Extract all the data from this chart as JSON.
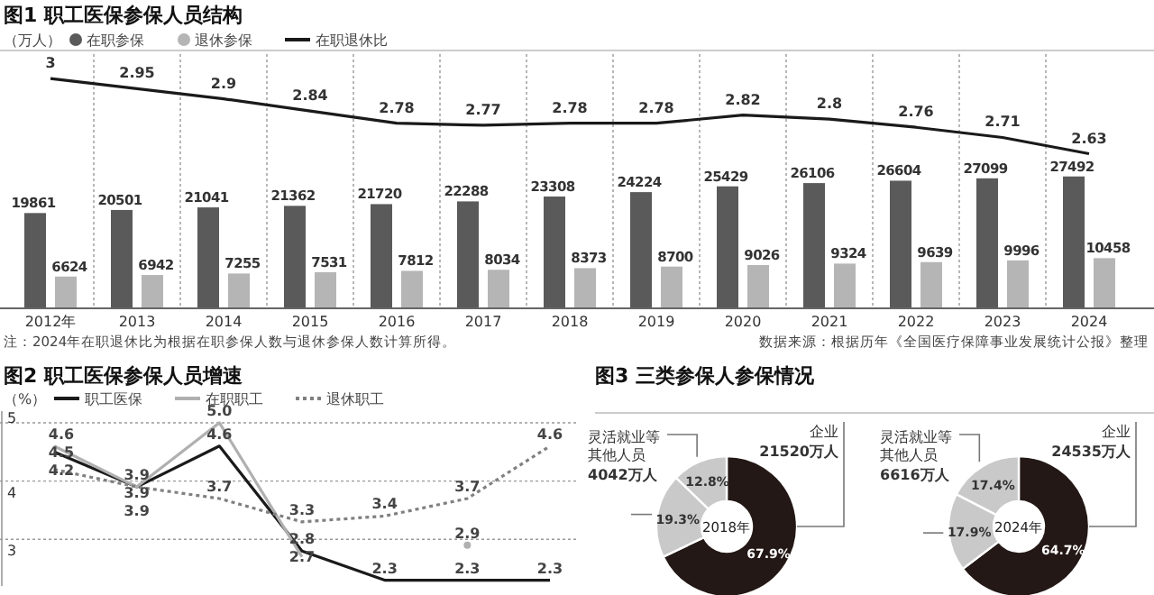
{
  "chart_data": [
    {
      "type": "bar",
      "title": "图1 职工医保参保人员结构",
      "ylabel": "（万人）",
      "categories": [
        "2012年",
        "2013",
        "2014",
        "2015",
        "2016",
        "2017",
        "2018",
        "2019",
        "2020",
        "2021",
        "2022",
        "2023",
        "2024"
      ],
      "series": [
        {
          "name": "在职参保",
          "color": "#5a5a5a",
          "values": [
            19861,
            20501,
            21041,
            21362,
            21720,
            22288,
            23308,
            24224,
            25429,
            26106,
            26604,
            27099,
            27492
          ]
        },
        {
          "name": "退休参保",
          "color": "#b5b5b5",
          "values": [
            6624,
            6942,
            7255,
            7531,
            7812,
            8034,
            8373,
            8700,
            9026,
            9324,
            9639,
            9996,
            10458
          ]
        },
        {
          "name": "在职退休比",
          "type": "line",
          "axis": "y2",
          "color": "#1a1a1a",
          "values": [
            3,
            2.95,
            2.9,
            2.84,
            2.78,
            2.77,
            2.78,
            2.78,
            2.82,
            2.8,
            2.76,
            2.71,
            2.63
          ]
        }
      ],
      "ylim": [
        0,
        53000
      ],
      "y2lim": [
        1.87,
        3.12
      ],
      "data_labels": true,
      "grid": "x",
      "legend": "top left",
      "tick_labels": "x",
      "annotations": [
        "注：2024年在职退休比为根据在职参保人数与退休参保人数计算所得。",
        "数据来源：根据历年《全国医疗保障事业发展统计公报》整理"
      ]
    },
    {
      "type": "line",
      "title": "图2 职工医保参保人员增速",
      "ylabel": "（%）",
      "categories": [
        null,
        null,
        null,
        null,
        null,
        null,
        null
      ],
      "series": [
        {
          "name": "职工医保",
          "color": "#1a1a1a",
          "values": [
            4.5,
            3.9,
            4.6,
            2.8,
            2.3,
            2.3,
            2.3
          ]
        },
        {
          "name": "在职职工",
          "color": "#b0b0b0",
          "values": [
            4.6,
            3.9,
            5.0,
            2.7,
            null,
            2.9,
            null
          ],
          "value_labels": [
            "4.6",
            "3.9",
            "5.0",
            "2.7",
            null,
            "2.9",
            null
          ]
        },
        {
          "name": "退休职工",
          "color": "#808080",
          "line_style": "dotted",
          "values": [
            4.2,
            3.9,
            3.7,
            3.3,
            3.4,
            3.7,
            4.6
          ]
        }
      ],
      "ylim": [
        2.2,
        5.2
      ],
      "yticks": [
        3,
        4,
        5
      ],
      "grid": "y",
      "legend": "top left",
      "data_labels": true,
      "tick_labels": "y"
    },
    {
      "type": "donut",
      "title": "图3 三类参保人参保情况",
      "subtitle": "2018年",
      "categories": [
        "企业",
        null,
        "灵活就业等其他人员"
      ],
      "values": [
        67.9,
        19.3,
        12.8
      ],
      "value_labels": [
        "67.9%",
        "19.3%",
        "12.8%"
      ],
      "colors": [
        "#231815",
        "#c9c9c9",
        "#c9c9c9"
      ],
      "data_labels": true,
      "annotations": [
        {
          "text": "21520万人",
          "x": "企业"
        },
        {
          "text": "4042万人",
          "x": "灵活就业等其他人员"
        }
      ]
    },
    {
      "type": "donut",
      "subtitle": "2024年",
      "categories": [
        "企业",
        null,
        "灵活就业等其他人员"
      ],
      "values": [
        64.7,
        17.9,
        17.4
      ],
      "value_labels": [
        "64.7%",
        "17.9%",
        "17.4%"
      ],
      "colors": [
        "#231815",
        "#c9c9c9",
        "#c9c9c9"
      ],
      "data_labels": true,
      "annotations": [
        {
          "text": "24535万人",
          "x": "企业"
        },
        {
          "text": "6616万人",
          "x": "灵活就业等其他人员"
        }
      ]
    }
  ]
}
